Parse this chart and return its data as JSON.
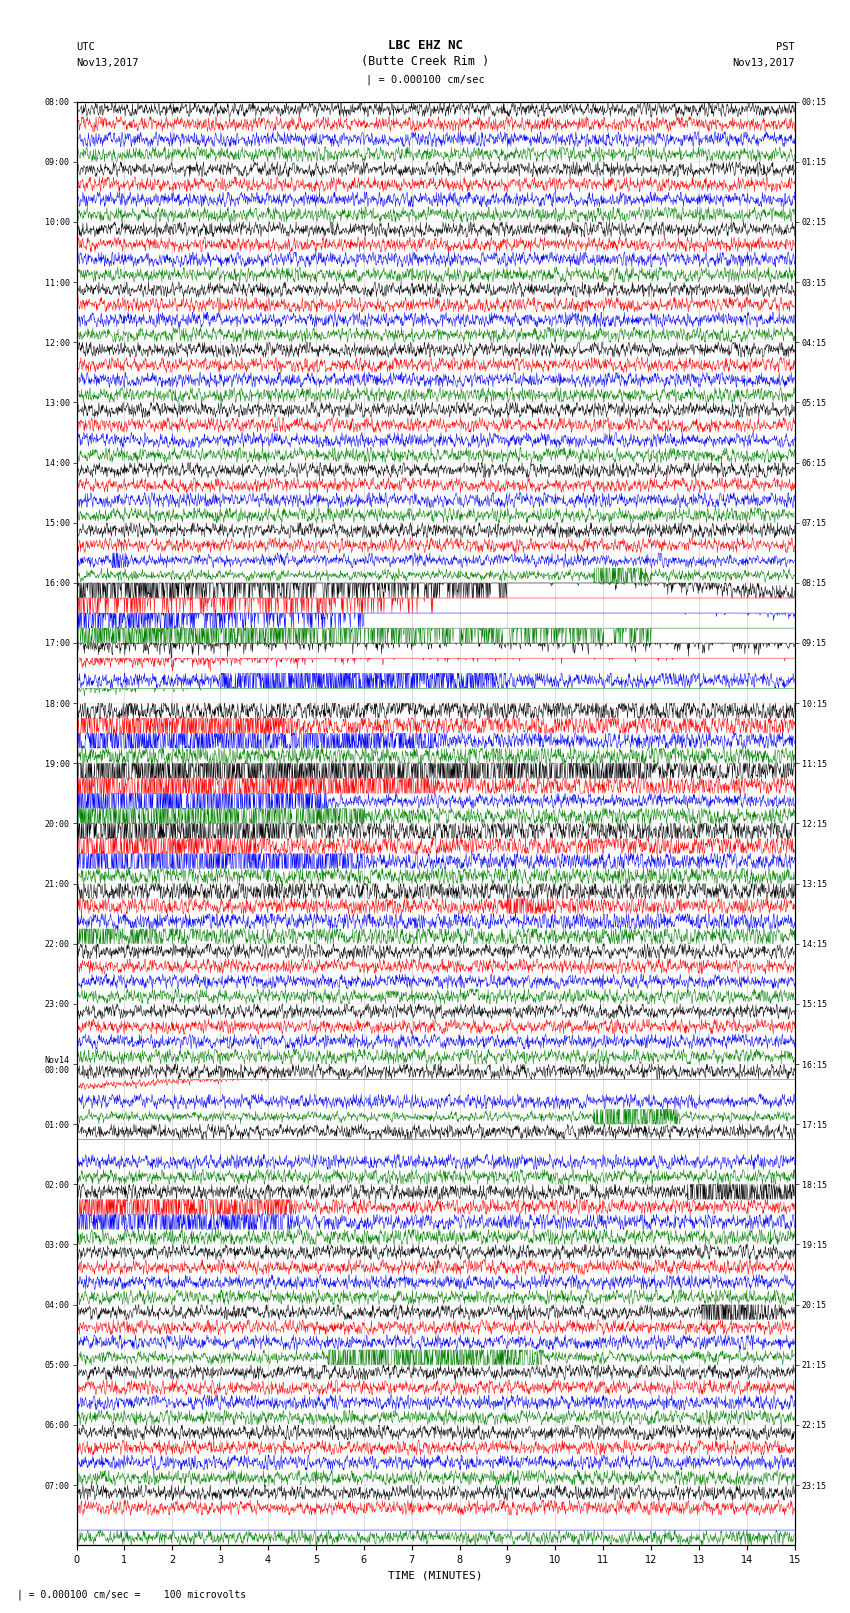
{
  "title_line1": "LBC EHZ NC",
  "title_line2": "(Butte Creek Rim )",
  "title_line3": "| = 0.000100 cm/sec",
  "left_header_line1": "UTC",
  "left_header_line2": "Nov13,2017",
  "right_header_line1": "PST",
  "right_header_line2": "Nov13,2017",
  "xlabel": "TIME (MINUTES)",
  "footer": "| = 0.000100 cm/sec =    100 microvolts",
  "utc_times": [
    "08:00",
    "09:00",
    "10:00",
    "11:00",
    "12:00",
    "13:00",
    "14:00",
    "15:00",
    "16:00",
    "17:00",
    "18:00",
    "19:00",
    "20:00",
    "21:00",
    "22:00",
    "23:00",
    "Nov14\n00:00",
    "01:00",
    "02:00",
    "03:00",
    "04:00",
    "05:00",
    "06:00",
    "07:00"
  ],
  "pst_times": [
    "00:15",
    "01:15",
    "02:15",
    "03:15",
    "04:15",
    "05:15",
    "06:15",
    "07:15",
    "08:15",
    "09:15",
    "10:15",
    "11:15",
    "12:15",
    "13:15",
    "14:15",
    "15:15",
    "16:15",
    "17:15",
    "18:15",
    "19:15",
    "20:15",
    "21:15",
    "22:15",
    "23:15"
  ],
  "trace_colors": [
    "black",
    "red",
    "blue",
    "green"
  ],
  "n_rows": 24,
  "traces_per_row": 4,
  "bg_color": "#ffffff",
  "grid_color": "#888888",
  "time_minutes": 15,
  "fig_width": 8.5,
  "fig_height": 16.13,
  "dpi": 100
}
